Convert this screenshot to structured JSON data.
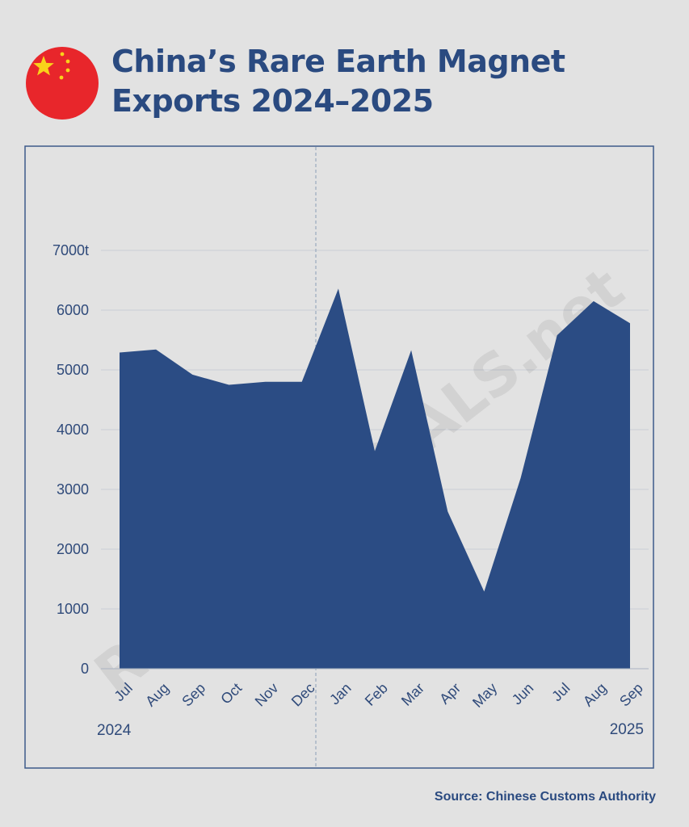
{
  "header": {
    "title_line1": "China’s Rare Earth Magnet",
    "title_line2": "Exports 2024–2025",
    "flag_icon": "china-flag-icon"
  },
  "watermark": "RAWMATERIALS.net",
  "source": "Source: Chinese Customs Authority",
  "colors": {
    "area": "#2b4c84",
    "text": "#2a4a80",
    "flag_red": "#e8262b",
    "flag_star": "#f9d21a",
    "frame": "#3d5a8a"
  },
  "chart_data": {
    "type": "area",
    "title": "China’s Rare Earth Magnet Exports 2024–2025",
    "categories": [
      "Jul",
      "Aug",
      "Sep",
      "Oct",
      "Nov",
      "Dec",
      "Jan",
      "Feb",
      "Mar",
      "Apr",
      "May",
      "Jun",
      "Jul",
      "Aug",
      "Sep"
    ],
    "year_labels": [
      "2024",
      "2025"
    ],
    "values": [
      5290,
      5340,
      4920,
      4750,
      4800,
      4800,
      6360,
      3640,
      5330,
      2630,
      1290,
      3190,
      5580,
      6150,
      5780
    ],
    "yticks": [
      "0",
      "1000",
      "2000",
      "3000",
      "4000",
      "5000",
      "6000",
      "7000t"
    ],
    "ylim": [
      0,
      7000
    ],
    "grid": true,
    "xlabel": "",
    "ylabel": ""
  }
}
